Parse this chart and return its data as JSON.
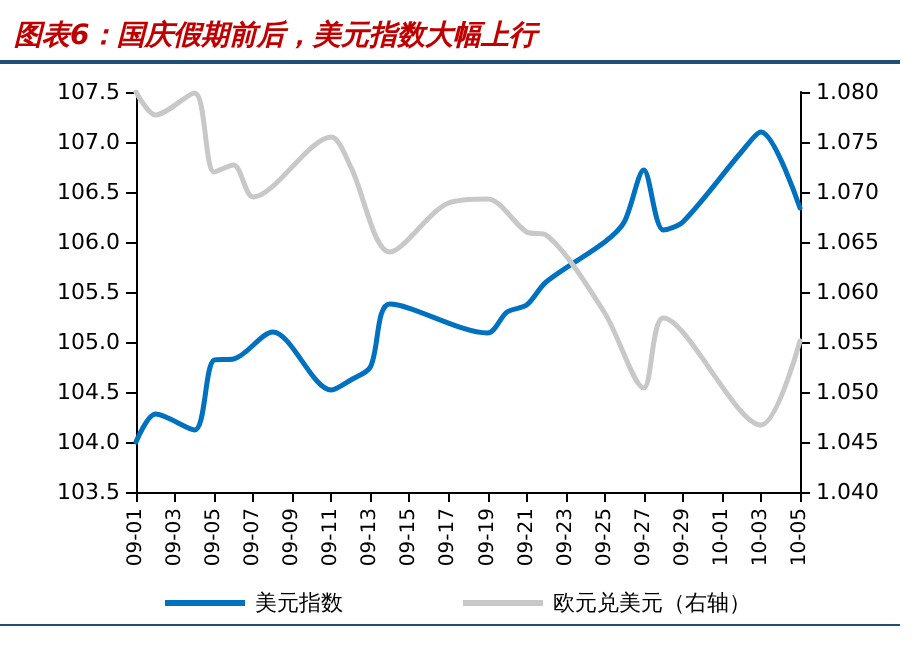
{
  "chart_data": {
    "type": "line",
    "title": "图表6：国庆假期前后，美元指数大幅上行",
    "xlim": [
      "--09-01",
      "--10-05"
    ],
    "xticks": [
      {
        "value": "--09-01",
        "label": "09-01"
      },
      {
        "value": "--09-03",
        "label": "09-03"
      },
      {
        "value": "--09-05",
        "label": "09-05"
      },
      {
        "value": "--09-07",
        "label": "09-07"
      },
      {
        "value": "--09-09",
        "label": "09-09"
      },
      {
        "value": "--09-11",
        "label": "09-11"
      },
      {
        "value": "--09-13",
        "label": "09-13"
      },
      {
        "value": "--09-15",
        "label": "09-15"
      },
      {
        "value": "--09-17",
        "label": "09-17"
      },
      {
        "value": "--09-19",
        "label": "09-19"
      },
      {
        "value": "--09-21",
        "label": "09-21"
      },
      {
        "value": "--09-23",
        "label": "09-23"
      },
      {
        "value": "--09-25",
        "label": "09-25"
      },
      {
        "value": "--09-27",
        "label": "09-27"
      },
      {
        "value": "--09-29",
        "label": "09-29"
      },
      {
        "value": "--10-01",
        "label": "10-01"
      },
      {
        "value": "--10-03",
        "label": "10-03"
      },
      {
        "value": "--10-05",
        "label": "10-05"
      }
    ],
    "ylim": [
      103.5,
      107.5
    ],
    "yticks": [
      {
        "value": 103.5,
        "label": "103.5"
      },
      {
        "value": 104,
        "label": "104.0"
      },
      {
        "value": 104.5,
        "label": "104.5"
      },
      {
        "value": 105,
        "label": "105.0"
      },
      {
        "value": 105.5,
        "label": "105.5"
      },
      {
        "value": 106,
        "label": "106.0"
      },
      {
        "value": 106.5,
        "label": "106.5"
      },
      {
        "value": 107,
        "label": "107.0"
      },
      {
        "value": 107.5,
        "label": "107.5"
      }
    ],
    "y2lim": [
      1.04,
      1.08
    ],
    "y2ticks": [
      {
        "value": 1.04,
        "label": "1.040"
      },
      {
        "value": 1.045,
        "label": "1.045"
      },
      {
        "value": 1.05,
        "label": "1.050"
      },
      {
        "value": 1.055,
        "label": "1.055"
      },
      {
        "value": 1.06,
        "label": "1.060"
      },
      {
        "value": 1.065,
        "label": "1.065"
      },
      {
        "value": 1.07,
        "label": "1.070"
      },
      {
        "value": 1.075,
        "label": "1.075"
      },
      {
        "value": 1.08,
        "label": "1.080"
      }
    ],
    "series": [
      {
        "name": "美元指数",
        "color": "#0070c0",
        "x": [
          "--09-01",
          "--09-02",
          "--09-04",
          "--09-05",
          "--09-06",
          "--09-08",
          "--09-11",
          "--09-12",
          "--09-13",
          "--09-14",
          "--09-19",
          "--09-20",
          "--09-21",
          "--09-22",
          "--09-25",
          "--09-26",
          "--09-27",
          "--09-28",
          "--09-29",
          "--10-02",
          "--10-03",
          "--10-05"
        ],
        "values": [
          104.0,
          104.28,
          104.12,
          104.82,
          104.83,
          105.1,
          104.52,
          104.62,
          104.75,
          105.38,
          105.09,
          105.3,
          105.37,
          105.6,
          106.0,
          106.2,
          106.72,
          106.12,
          106.2,
          106.9,
          107.1,
          106.34
        ]
      },
      {
        "name": "欧元兑美元（右轴）",
        "color": "#c8c8c8",
        "axis": "y2",
        "x": [
          "--09-01",
          "--09-02",
          "--09-04",
          "--09-05",
          "--09-06",
          "--09-07",
          "--09-11",
          "--09-12",
          "--09-14",
          "--09-17",
          "--09-19",
          "--09-21",
          "--09-22",
          "--09-25",
          "--09-27",
          "--09-28",
          "--10-03",
          "--10-05"
        ],
        "values": [
          1.08,
          1.0777,
          1.0799,
          1.072,
          1.0727,
          1.0695,
          1.0755,
          1.0725,
          1.064,
          1.0689,
          1.0693,
          1.066,
          1.0657,
          1.0579,
          1.0504,
          1.0574,
          1.0467,
          1.0551
        ]
      }
    ],
    "legend": "bottom",
    "grid": false,
    "marker": "none",
    "line_style": "solid"
  }
}
